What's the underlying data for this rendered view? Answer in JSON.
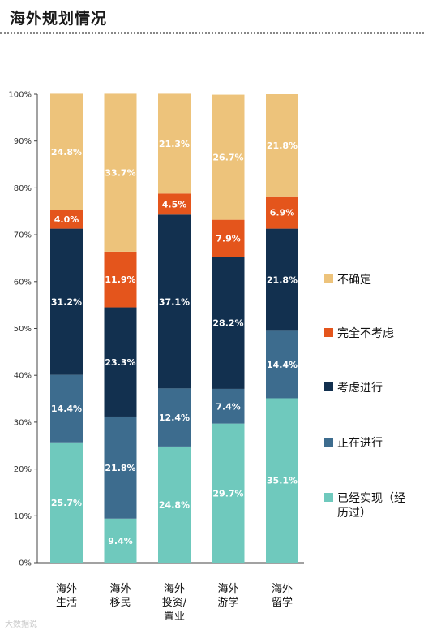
{
  "header": {
    "title": "海外规划情况"
  },
  "watermark": "大数据说",
  "chart_data": {
    "type": "bar",
    "stacked": true,
    "categories": [
      [
        "海外",
        "生活"
      ],
      [
        "海外",
        "移民"
      ],
      [
        "海外",
        "投资/",
        "置业"
      ],
      [
        "海外",
        "游学"
      ],
      [
        "海外",
        "留学"
      ]
    ],
    "ylim": [
      0,
      100
    ],
    "yticks": [
      "0%",
      "10%",
      "20%",
      "30%",
      "40%",
      "50%",
      "60%",
      "70%",
      "80%",
      "90%",
      "100%"
    ],
    "legend_position": "right",
    "grid": false,
    "series": [
      {
        "name": "已经实现（经历过）",
        "legend_lines": [
          "已经实现（经",
          "历过）"
        ],
        "color": "#6fc9bd",
        "values": [
          25.7,
          9.4,
          24.8,
          29.7,
          35.1
        ],
        "labels": [
          "25.7%",
          "9.4%",
          "24.8%",
          "29.7%",
          "35.1%"
        ]
      },
      {
        "name": "正在进行",
        "legend_lines": [
          "正在进行"
        ],
        "color": "#3d6c8e",
        "values": [
          14.4,
          21.8,
          12.4,
          7.4,
          14.4
        ],
        "labels": [
          "14.4%",
          "21.8%",
          "12.4%",
          "7.4%",
          "14.4%"
        ]
      },
      {
        "name": "考虑进行",
        "legend_lines": [
          "考虑进行"
        ],
        "color": "#12304f",
        "values": [
          31.2,
          23.3,
          37.1,
          28.2,
          21.8
        ],
        "labels": [
          "31.2%",
          "23.3%",
          "37.1%",
          "28.2%",
          "21.8%"
        ]
      },
      {
        "name": "完全不考虑",
        "legend_lines": [
          "完全不考虑"
        ],
        "color": "#e4551c",
        "values": [
          4.0,
          11.9,
          4.5,
          7.9,
          6.9
        ],
        "labels": [
          "4.0%",
          "11.9%",
          "4.5%",
          "7.9%",
          "6.9%"
        ]
      },
      {
        "name": "不确定",
        "legend_lines": [
          "不确定"
        ],
        "color": "#edc37b",
        "values": [
          24.8,
          33.7,
          21.3,
          26.7,
          21.8
        ],
        "labels": [
          "24.8%",
          "33.7%",
          "21.3%",
          "26.7%",
          "21.8%"
        ]
      }
    ]
  }
}
